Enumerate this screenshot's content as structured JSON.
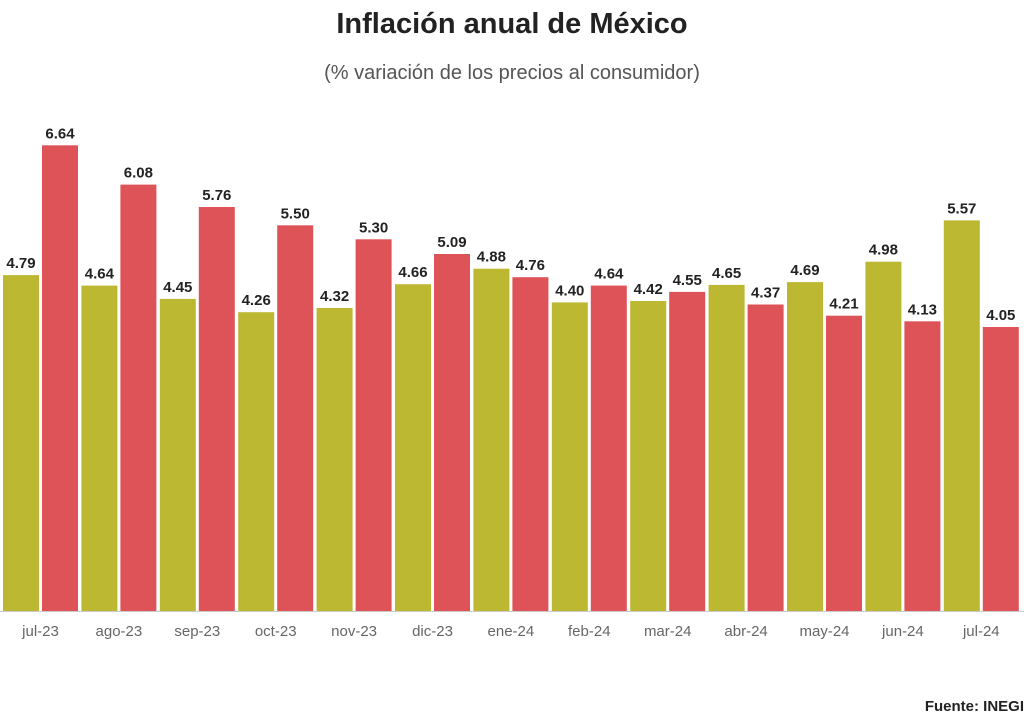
{
  "title": "Inflación anual de México",
  "subtitle": "(% variación de los precios al consumidor)",
  "source": "Fuente: INEGI",
  "colors": {
    "2024": "#bcb832",
    "2023": "#de5358",
    "axis": "#cccccc"
  },
  "chart_data": {
    "type": "bar",
    "categories": [
      "jul-23",
      "ago-23",
      "sep-23",
      "oct-23",
      "nov-23",
      "dic-23",
      "ene-24",
      "feb-24",
      "mar-24",
      "abr-24",
      "may-24",
      "jun-24",
      "jul-24"
    ],
    "series": [
      {
        "values": [
          4.79,
          4.64,
          4.45,
          4.26,
          4.32,
          4.66,
          4.88,
          4.4,
          4.42,
          4.65,
          4.69,
          4.98,
          5.57
        ],
        "color": "#bcb832"
      },
      {
        "values": [
          6.64,
          6.08,
          5.76,
          5.5,
          5.3,
          5.09,
          4.76,
          4.64,
          4.55,
          4.37,
          4.21,
          4.13,
          4.05
        ],
        "color": "#de5358"
      }
    ],
    "title": "Inflación anual de México",
    "xlabel": "",
    "ylabel": "",
    "ylim": [
      0,
      7.5
    ],
    "grid": false,
    "legend": "none"
  }
}
